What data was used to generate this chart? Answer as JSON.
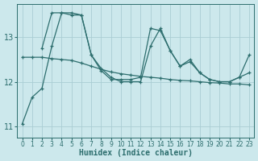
{
  "xlabel": "Humidex (Indice chaleur)",
  "bg_color": "#cce8ec",
  "grid_color": "#aacdd4",
  "line_color": "#2d6e6e",
  "xlim": [
    -0.5,
    23.5
  ],
  "ylim": [
    10.75,
    13.75
  ],
  "yticks": [
    11,
    12,
    13
  ],
  "xticks": [
    0,
    1,
    2,
    3,
    4,
    5,
    6,
    7,
    8,
    9,
    10,
    11,
    12,
    13,
    14,
    15,
    16,
    17,
    18,
    19,
    20,
    21,
    22,
    23
  ],
  "series1_x": [
    0,
    1,
    2,
    3,
    4,
    5,
    6,
    7,
    8,
    9,
    10,
    11,
    12,
    13,
    14,
    15,
    16,
    17,
    18,
    19,
    20,
    21,
    22,
    23
  ],
  "series1_y": [
    11.05,
    11.65,
    11.85,
    12.8,
    13.55,
    13.55,
    13.5,
    12.6,
    12.25,
    12.05,
    12.05,
    12.05,
    12.1,
    13.2,
    13.15,
    12.7,
    12.35,
    12.45,
    12.2,
    12.05,
    12.0,
    12.0,
    12.1,
    12.2
  ],
  "series2_x": [
    2,
    3,
    4,
    5,
    6,
    7,
    8,
    9,
    10,
    11,
    12,
    13,
    14,
    15,
    16,
    17,
    18,
    19,
    20,
    21,
    22,
    23
  ],
  "series2_y": [
    12.75,
    13.55,
    13.55,
    13.5,
    13.5,
    12.6,
    12.3,
    12.1,
    12.0,
    12.0,
    12.0,
    12.8,
    13.2,
    12.7,
    12.35,
    12.5,
    12.2,
    12.05,
    12.0,
    12.0,
    12.1,
    12.6
  ],
  "series3_x": [
    0,
    1,
    2,
    3,
    4,
    5,
    6,
    7,
    8,
    9,
    10,
    11,
    12,
    13,
    14,
    15,
    16,
    17,
    18,
    19,
    20,
    21,
    22,
    23
  ],
  "series3_y": [
    12.55,
    12.55,
    12.55,
    12.52,
    12.5,
    12.48,
    12.42,
    12.35,
    12.28,
    12.22,
    12.18,
    12.15,
    12.12,
    12.1,
    12.08,
    12.05,
    12.03,
    12.02,
    12.0,
    11.98,
    11.97,
    11.95,
    11.95,
    11.93
  ]
}
